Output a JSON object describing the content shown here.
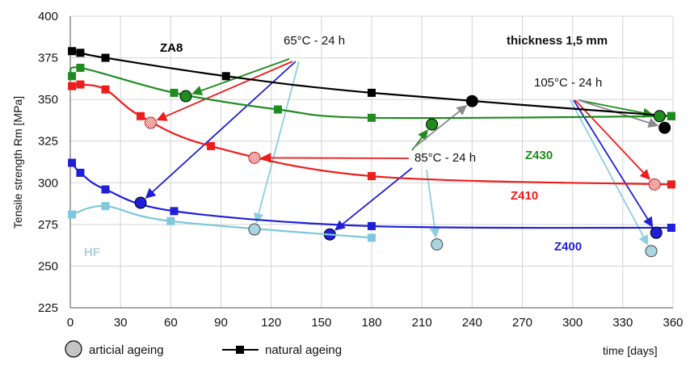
{
  "chart_data": {
    "type": "line",
    "xlabel": "time [days]",
    "ylabel": "Tensile strength Rm [MPa]",
    "xlim": [
      0,
      360
    ],
    "ylim": [
      225,
      400
    ],
    "x_ticks": [
      0,
      30,
      60,
      90,
      120,
      150,
      180,
      210,
      240,
      270,
      300,
      330,
      360
    ],
    "y_ticks": [
      225,
      250,
      275,
      300,
      325,
      350,
      375,
      400
    ],
    "grid": true,
    "series": [
      {
        "name": "ZA8",
        "color": "#000000",
        "natural_ageing": {
          "x": [
            1,
            6,
            21,
            93,
            180,
            359
          ],
          "y": [
            379,
            378,
            375,
            364,
            354,
            340
          ]
        },
        "artificial_ageing": [
          {
            "x": 240,
            "y": 349
          },
          {
            "x": 355,
            "y": 333
          }
        ]
      },
      {
        "name": "Z430",
        "color": "#1f8c1f",
        "natural_ageing": {
          "x": [
            1,
            6,
            62,
            124,
            180,
            359
          ],
          "y": [
            364,
            369,
            354,
            344,
            339,
            340
          ]
        },
        "artificial_ageing": [
          {
            "x": 69,
            "y": 352
          },
          {
            "x": 216,
            "y": 335
          },
          {
            "x": 352,
            "y": 340
          }
        ]
      },
      {
        "name": "Z410",
        "color": "#ee1c1c",
        "natural_ageing": {
          "x": [
            1,
            6,
            21,
            42,
            84,
            180,
            359
          ],
          "y": [
            358,
            359,
            356,
            340,
            322,
            304,
            299
          ]
        },
        "artificial_ageing": [
          {
            "x": 48,
            "y": 336
          },
          {
            "x": 110,
            "y": 315
          },
          {
            "x": 349,
            "y": 299
          }
        ]
      },
      {
        "name": "Z400",
        "color": "#1f1fd8",
        "natural_ageing": {
          "x": [
            1,
            6,
            21,
            62,
            180,
            359
          ],
          "y": [
            312,
            306,
            296,
            283,
            274,
            273
          ]
        },
        "artificial_ageing": [
          {
            "x": 42,
            "y": 288
          },
          {
            "x": 155,
            "y": 269
          },
          {
            "x": 350,
            "y": 270
          }
        ]
      },
      {
        "name": "HF",
        "color": "#7fc7dc",
        "natural_ageing": {
          "x": [
            1,
            21,
            60,
            180
          ],
          "y": [
            281,
            286,
            277,
            267
          ]
        },
        "artificial_ageing": [
          {
            "x": 110,
            "y": 272
          },
          {
            "x": 219,
            "y": 263
          },
          {
            "x": 347,
            "y": 259
          }
        ]
      }
    ],
    "annotations": {
      "treatment_65": "65°C - 24 h",
      "treatment_85": "85°C - 24 h",
      "treatment_105": "105°C - 24 h",
      "thickness": "thickness 1,5 mm"
    },
    "legend": {
      "artificial": "articial ageing",
      "natural": "natural ageing",
      "placement": "bottom-left"
    }
  }
}
